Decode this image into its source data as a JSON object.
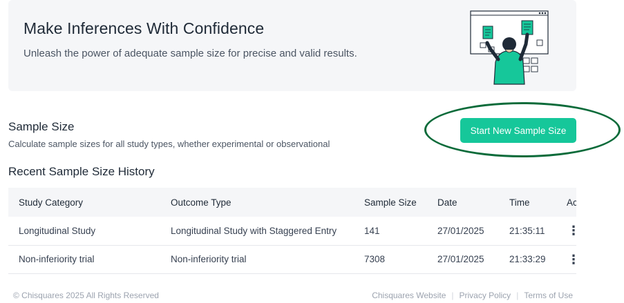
{
  "hero": {
    "title": "Make Inferences With Confidence",
    "subtitle": "Unleash the power of adequate sample size for precise and valid results."
  },
  "section": {
    "title": "Sample Size",
    "subtitle": "Calculate sample sizes for all study types, whether experimental or observational",
    "start_button": "Start New Sample Size"
  },
  "history": {
    "title": "Recent Sample Size History",
    "columns": [
      "Study Category",
      "Outcome Type",
      "Sample Size",
      "Date",
      "Time",
      "Actions"
    ],
    "rows": [
      {
        "category": "Longitudinal Study",
        "outcome": "Longitudinal Study with Staggered Entry",
        "size": "141",
        "date": "27/01/2025",
        "time": "21:35:11"
      },
      {
        "category": "Non-inferiority trial",
        "outcome": "Non-inferiority trial",
        "size": "7308",
        "date": "27/01/2025",
        "time": "21:33:29"
      }
    ]
  },
  "footer": {
    "copyright": "© Chisquares 2025 All Rights Reserved",
    "links": [
      "Chisquares Website",
      "Privacy Policy",
      "Terms of Use"
    ]
  },
  "colors": {
    "accent": "#16c79a",
    "highlight_ring": "#0b6b3a",
    "hero_bg": "#f5f6f8"
  },
  "icons": {
    "row_menu": "kebab-menu-icon",
    "hero_illustration": "person-pinning-documents-illustration"
  }
}
